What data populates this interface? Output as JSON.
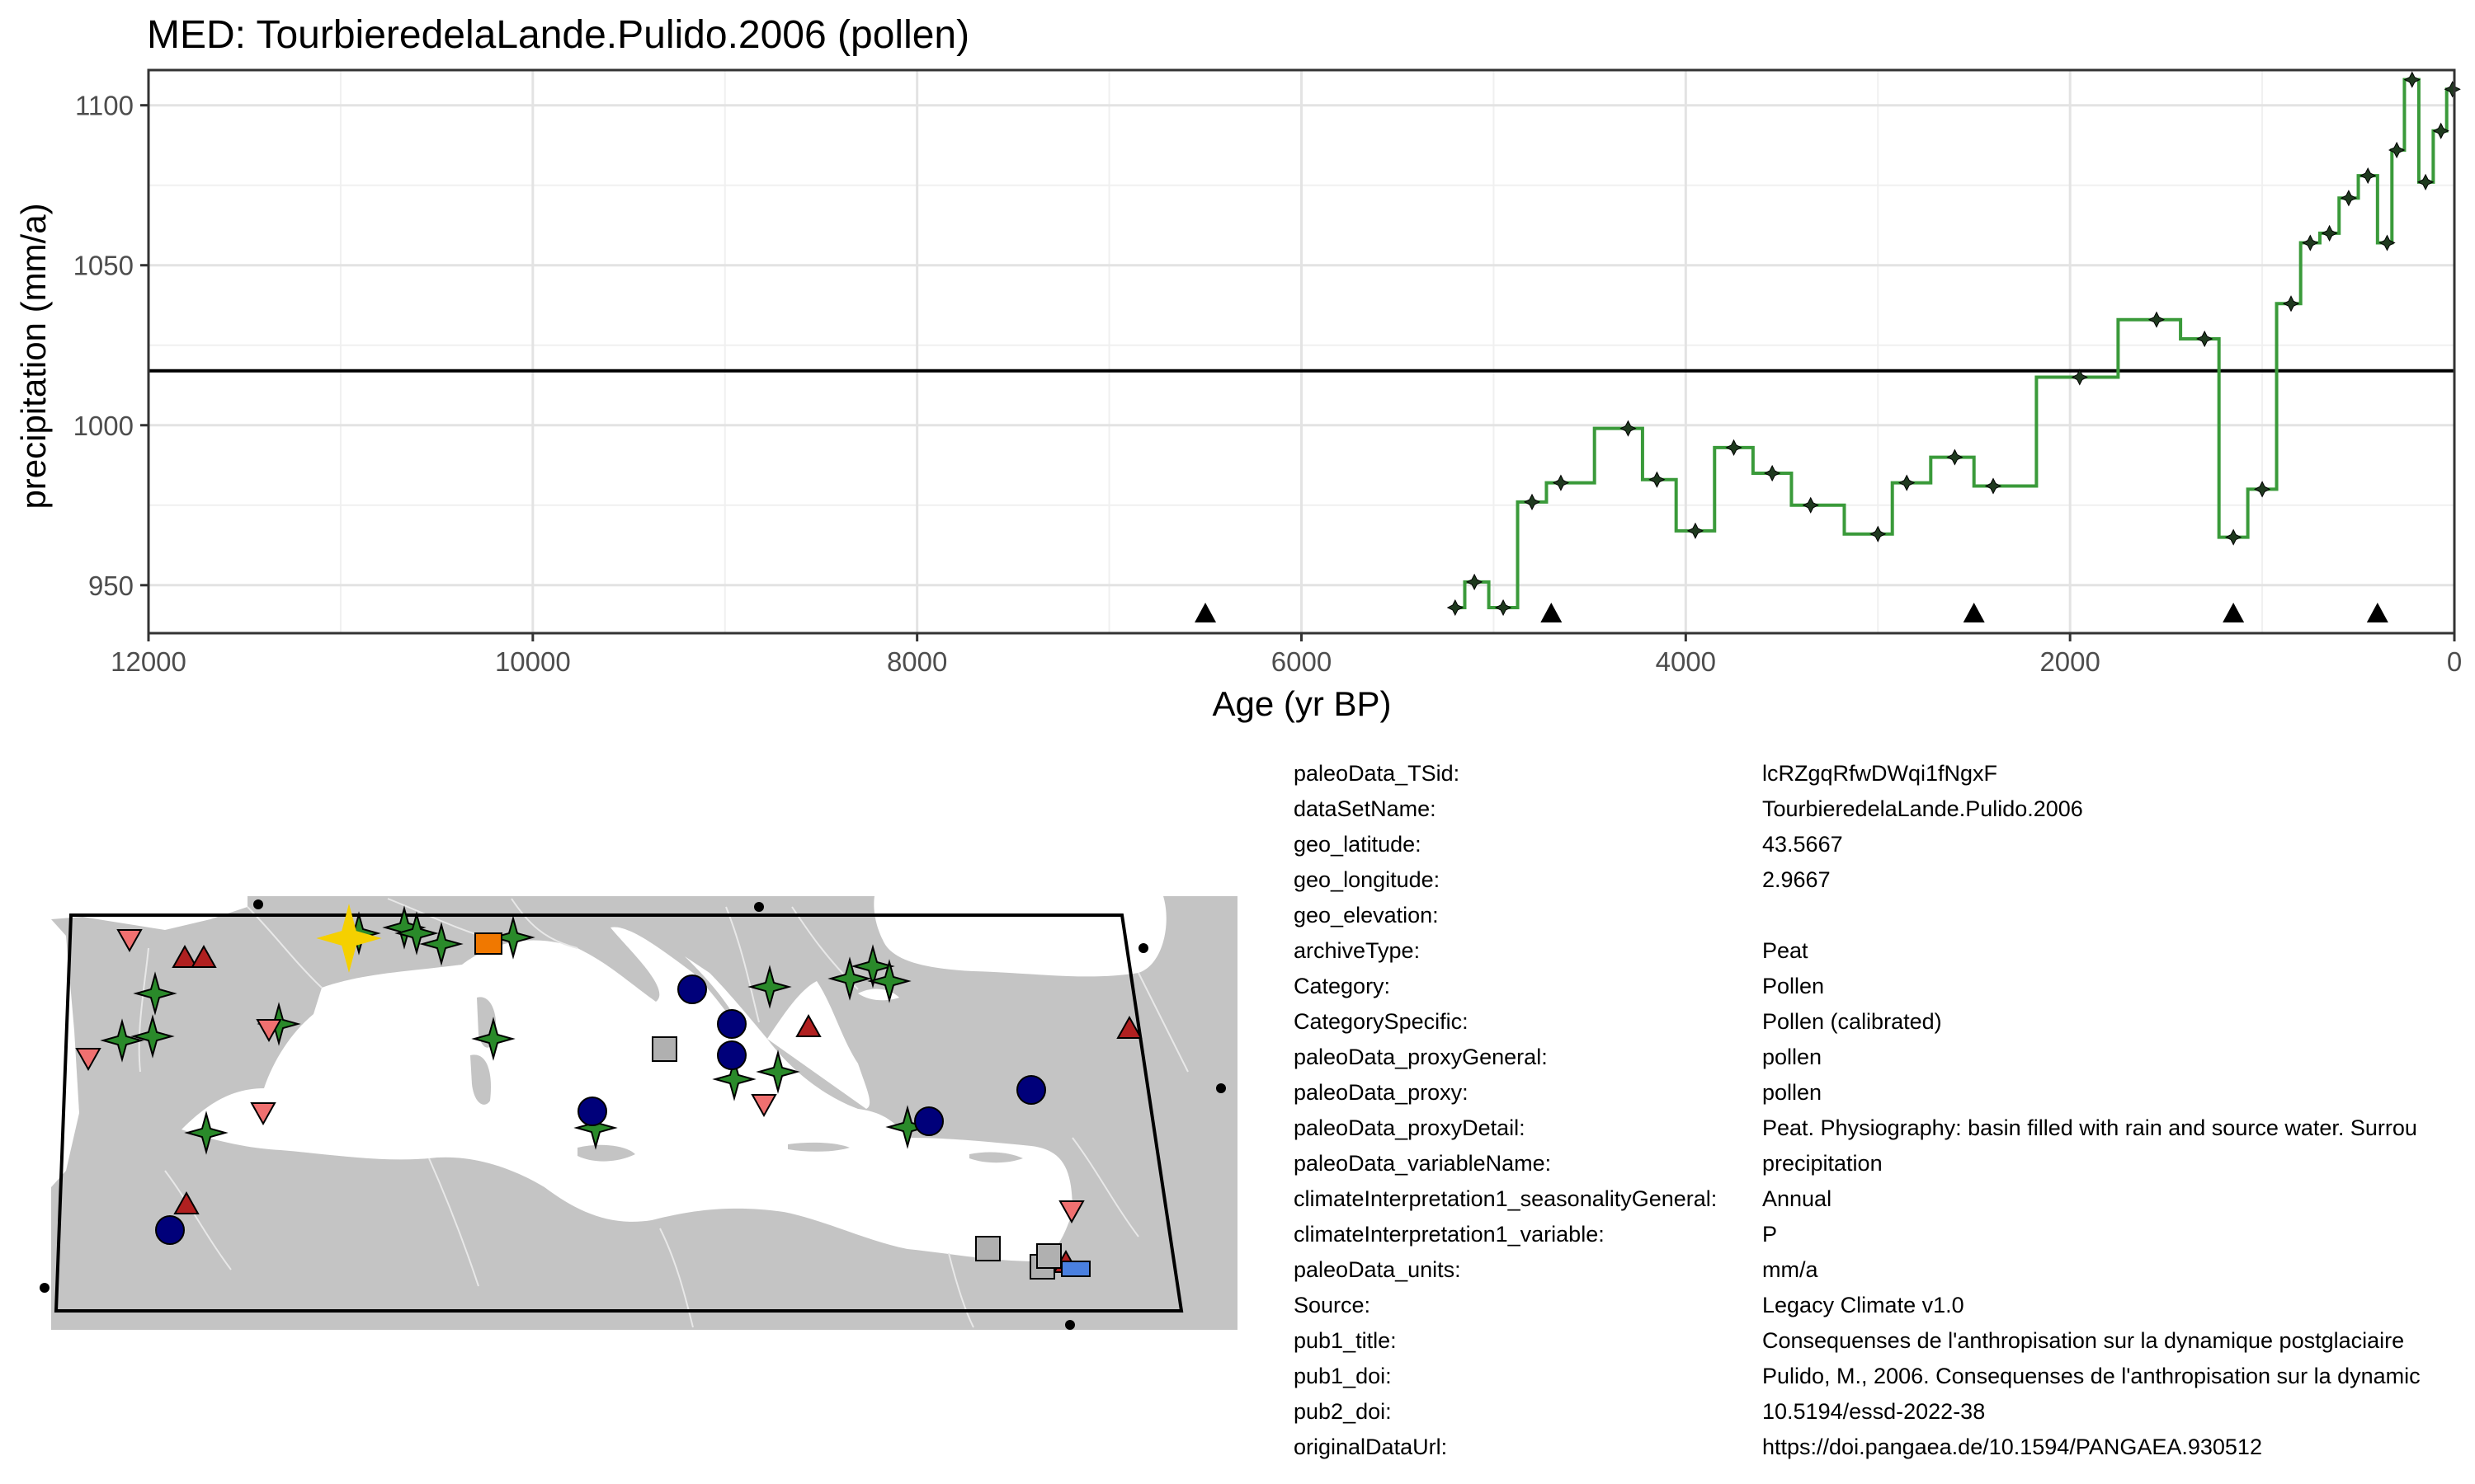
{
  "chart_data": {
    "type": "line",
    "title": "MED: TourbieredelaLande.Pulido.2006 (pollen)",
    "xlabel": "Age (yr BP)",
    "ylabel": "precipitation (mm/a)",
    "xlim": [
      12000,
      0
    ],
    "ylim": [
      935,
      1111
    ],
    "x_ticks": [
      12000,
      10000,
      8000,
      6000,
      4000,
      2000,
      0
    ],
    "y_ticks": [
      950,
      1000,
      1050,
      1100
    ],
    "x_reversed": true,
    "grid": true,
    "reference_line": 1017,
    "line_color": "#3a9a3a",
    "series": [
      {
        "values": [
          [
            5200,
            943
          ],
          [
            5100,
            951
          ],
          [
            4950,
            943
          ],
          [
            4800,
            976
          ],
          [
            4650,
            982
          ],
          [
            4300,
            999
          ],
          [
            4150,
            983
          ],
          [
            3950,
            967
          ],
          [
            3750,
            993
          ],
          [
            3550,
            985
          ],
          [
            3350,
            975
          ],
          [
            3000,
            966
          ],
          [
            2850,
            982
          ],
          [
            2600,
            990
          ],
          [
            2400,
            981
          ],
          [
            1950,
            1015
          ],
          [
            1550,
            1033
          ],
          [
            1300,
            1027
          ],
          [
            1150,
            965
          ],
          [
            1000,
            980
          ],
          [
            850,
            1038
          ],
          [
            750,
            1057
          ],
          [
            650,
            1060
          ],
          [
            550,
            1071
          ],
          [
            450,
            1078
          ],
          [
            350,
            1057
          ],
          [
            300,
            1086
          ],
          [
            220,
            1108
          ],
          [
            150,
            1076
          ],
          [
            70,
            1092
          ],
          [
            10,
            1105
          ]
        ]
      }
    ],
    "age_markers": [
      6500,
      4700,
      2500,
      1150,
      400
    ]
  },
  "map": {
    "land_color": "#c4c4c4",
    "sea_color": "#ffffff",
    "highlight_site": "2.9667, 43.5667"
  },
  "metadata": [
    {
      "key": "paleoData_TSid:",
      "value": "lcRZgqRfwDWqi1fNgxF"
    },
    {
      "key": "dataSetName:",
      "value": "TourbieredelaLande.Pulido.2006"
    },
    {
      "key": "geo_latitude:",
      "value": "43.5667"
    },
    {
      "key": "geo_longitude:",
      "value": "2.9667"
    },
    {
      "key": "geo_elevation:",
      "value": ""
    },
    {
      "key": "archiveType:",
      "value": "Peat"
    },
    {
      "key": "Category:",
      "value": "Pollen"
    },
    {
      "key": "CategorySpecific:",
      "value": "Pollen (calibrated)"
    },
    {
      "key": "paleoData_proxyGeneral:",
      "value": "pollen"
    },
    {
      "key": "paleoData_proxy:",
      "value": "pollen"
    },
    {
      "key": "paleoData_proxyDetail:",
      "value": "Peat. Physiography: basin filled with rain and source water. Surrou"
    },
    {
      "key": "paleoData_variableName:",
      "value": "precipitation"
    },
    {
      "key": "climateInterpretation1_seasonalityGeneral:",
      "value": "Annual"
    },
    {
      "key": "climateInterpretation1_variable:",
      "value": "P"
    },
    {
      "key": "paleoData_units:",
      "value": "mm/a"
    },
    {
      "key": "Source:",
      "value": "Legacy Climate v1.0"
    },
    {
      "key": "pub1_title:",
      "value": "Consequenses de l'anthropisation sur la dynamique postglaciaire"
    },
    {
      "key": "pub1_doi:",
      "value": "Pulido, M., 2006. Consequenses de l'anthropisation sur la dynamic"
    },
    {
      "key": "pub2_doi:",
      "value": "10.5194/essd-2022-38"
    },
    {
      "key": "originalDataUrl:",
      "value": "https://doi.pangaea.de/10.1594/PANGAEA.930512"
    }
  ]
}
